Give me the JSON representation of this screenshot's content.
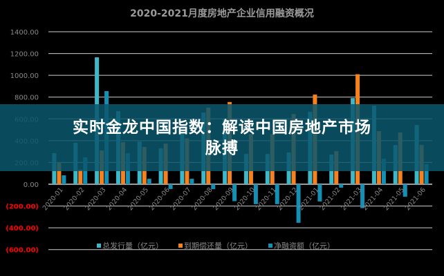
{
  "chart_data": {
    "type": "bar",
    "title": "2020-2021月度房地产企业信用融资概况",
    "categories": [
      "2020-01",
      "2020-02",
      "2020-03",
      "2020-04",
      "2020-05",
      "2020-06",
      "2020-07",
      "2020-08",
      "2020-09",
      "2020-10",
      "2020-11",
      "2020-12",
      "2021-01",
      "2021-02",
      "2021-03",
      "2021-04",
      "2021-05",
      "2021-06"
    ],
    "series": [
      {
        "name": "总发行量（亿元）",
        "color": "#3db8c9",
        "values": [
          285,
          380,
          1165,
          671,
          392,
          329,
          470,
          658,
          600,
          278,
          278,
          291,
          665,
          272,
          791,
          721,
          360,
          544
        ]
      },
      {
        "name": "到期偿还量（亿元）",
        "color": "#f5821f",
        "values": [
          203,
          133,
          310,
          386,
          342,
          373,
          420,
          703,
          755,
          461,
          461,
          645,
          823,
          304,
          1010,
          487,
          475,
          360
        ]
      },
      {
        "name": "净融资额（亿元）",
        "color": "#1590b5",
        "values": [
          82,
          247,
          855,
          285,
          50,
          -44,
          50,
          -45,
          -155,
          -183,
          -183,
          -354,
          -158,
          -32,
          -219,
          234,
          -115,
          184
        ]
      }
    ],
    "yticks": [
      1400,
      1200,
      1000,
      800,
      600,
      400,
      200,
      0,
      -200,
      -400,
      -600
    ],
    "ytick_labels": [
      "1400.00",
      "1200.00",
      "1000.00",
      "800.00",
      "600.00",
      "400.00",
      "200.00",
      "0.00",
      "(200.00)",
      "(400.00)",
      "(600.00)"
    ],
    "negative_label_color": "#ff0000",
    "ylim": [
      -600,
      1400
    ],
    "grid": true,
    "legend": "bottom"
  },
  "banner": {
    "line1": "实时金龙中国指数：解读中国房地产市场",
    "line2": "脉搏"
  }
}
